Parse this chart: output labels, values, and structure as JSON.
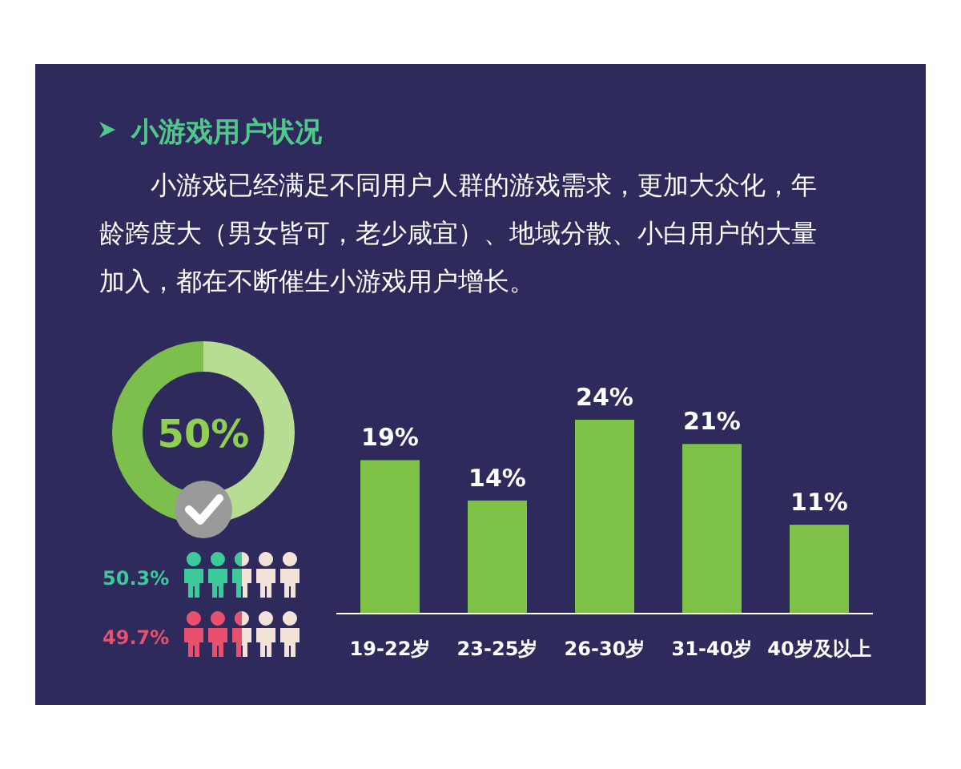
{
  "chart_data": [
    {
      "type": "donut",
      "title": "小游戏用户状况",
      "subtitle": "小游戏已经满足不同用户人群的游戏需求，更加大众化，年龄跨度大（男女皆可，老少咸宜）、地域分散、小白用户的大量加入，都在不断催生小游戏用户增长。",
      "categories": [
        null,
        null
      ],
      "values": [
        50,
        50
      ],
      "colors": [
        "#b7dd92",
        "#7dbf4c"
      ],
      "annotations": [
        "50%"
      ]
    },
    {
      "type": "other",
      "annotations": [
        "50.3%",
        "49.7%"
      ]
    },
    {
      "type": "bar",
      "categories": [
        "19-22岁",
        "23-25岁",
        "26-30岁",
        "31-40岁",
        "40岁及以上"
      ],
      "values": [
        19,
        14,
        24,
        21,
        11
      ],
      "value_labels": [
        "19%",
        "14%",
        "24%",
        "21%",
        "11%"
      ],
      "color": "#7dc247"
    }
  ]
}
